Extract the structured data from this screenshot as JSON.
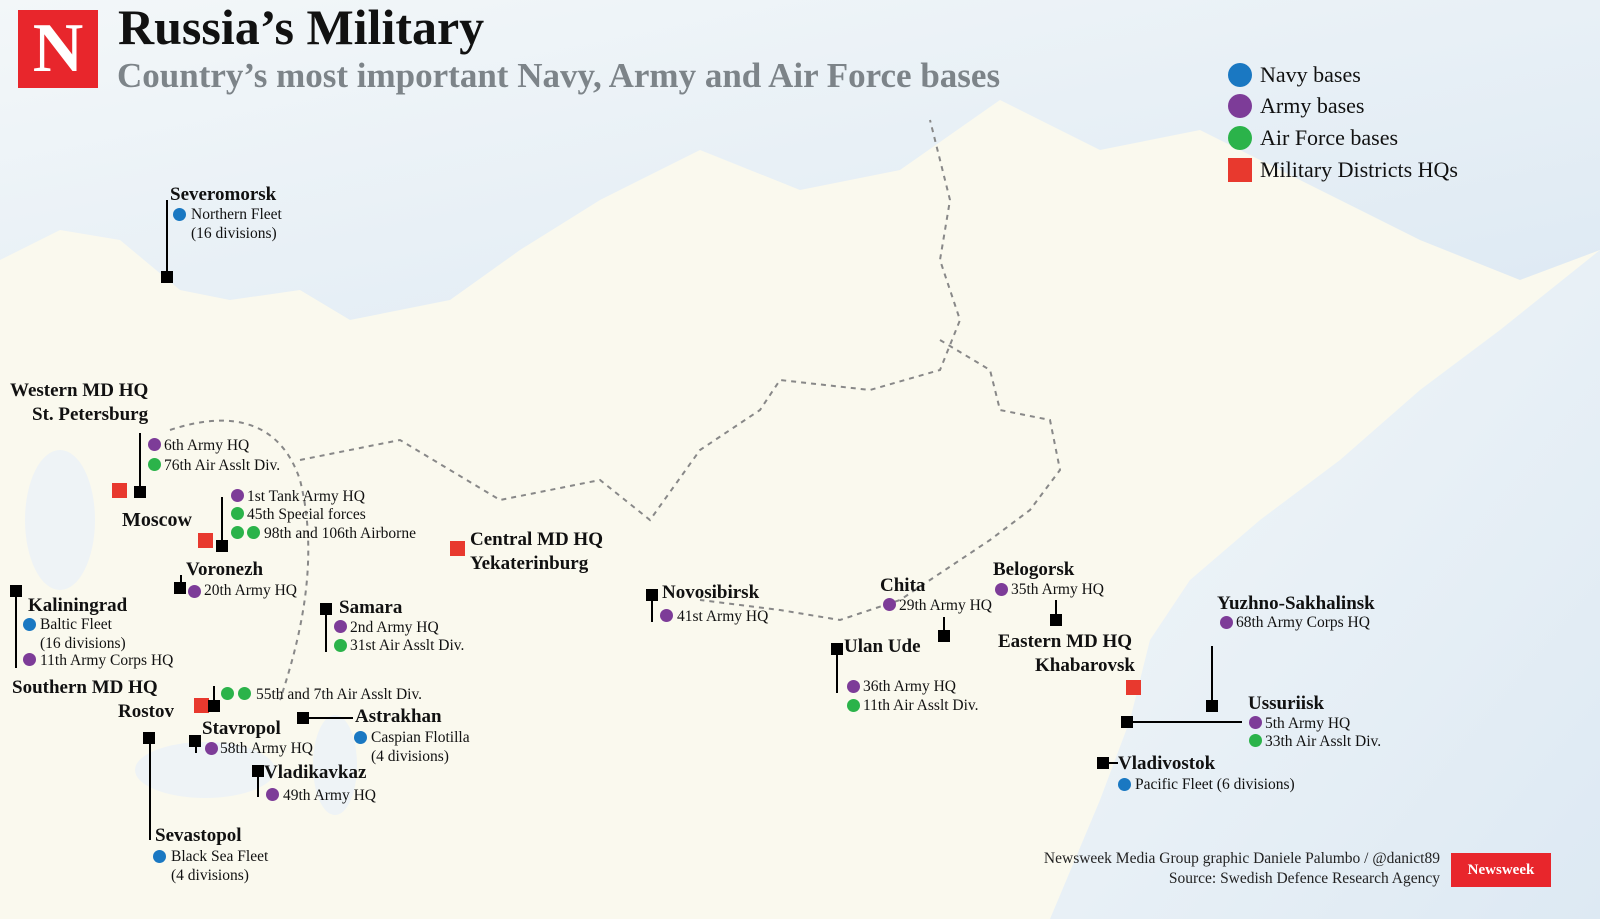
{
  "header": {
    "logo_letter": "N",
    "title": "Russia’s Military",
    "subtitle": "Country’s most important Navy, Army and Air Force bases"
  },
  "legend": [
    {
      "label": "Navy bases",
      "color": "#1a78c2"
    },
    {
      "label": "Army bases",
      "color": "#7d3c98"
    },
    {
      "label": "Air Force bases",
      "color": "#2bb34a"
    },
    {
      "label": "Military Districts HQs",
      "color": "#e8392e"
    }
  ],
  "bases": {
    "severomorsk": {
      "name": "Severomorsk",
      "items": [
        "Northern Fleet",
        "(16 divisions)"
      ]
    },
    "western": {
      "name": "Western MD HQ",
      "city": "St. Petersburg",
      "items": [
        "6th Army HQ",
        "76th Air Asslt Div."
      ]
    },
    "moscow": {
      "name": "Moscow",
      "items": [
        "1st Tank Army HQ",
        "45th Special forces",
        "98th and 106th Airborne"
      ]
    },
    "central": {
      "name": "Central MD HQ",
      "city": "Yekaterinburg"
    },
    "voronezh": {
      "name": "Voronezh",
      "items": [
        "20th Army HQ"
      ]
    },
    "kaliningrad": {
      "name": "Kaliningrad",
      "items": [
        "Baltic Fleet",
        "(16 divisions)",
        "11th Army Corps HQ"
      ]
    },
    "samara": {
      "name": "Samara",
      "items": [
        "2nd Army HQ",
        "31st Air Asslt Div."
      ]
    },
    "southern": {
      "name": "Southern MD HQ",
      "city": "Rostov",
      "items": [
        "55th and 7th Air Asslt Div."
      ]
    },
    "astrakhan": {
      "name": "Astrakhan",
      "items": [
        "Caspian Flotilla",
        "(4 divisions)"
      ]
    },
    "stavropol": {
      "name": "Stavropol",
      "items": [
        "58th Army HQ"
      ]
    },
    "vladikavkaz": {
      "name": "Vladikavkaz",
      "items": [
        "49th Army HQ"
      ]
    },
    "sevastopol": {
      "name": "Sevastopol",
      "items": [
        "Black Sea Fleet",
        "(4 divisions)"
      ]
    },
    "novosibirsk": {
      "name": "Novosibirsk",
      "items": [
        "41st Army HQ"
      ]
    },
    "chita": {
      "name": "Chita",
      "items": [
        "29th Army HQ"
      ]
    },
    "ulanude": {
      "name": "Ulan Ude",
      "items": [
        "36th Army HQ",
        "11th Air Asslt Div."
      ]
    },
    "belogorsk": {
      "name": "Belogorsk",
      "items": [
        "35th Army HQ"
      ]
    },
    "eastern": {
      "name": "Eastern MD HQ",
      "city": "Khabarovsk"
    },
    "yuzhno": {
      "name": "Yuzhno-Sakhalinsk",
      "items": [
        "68th Army Corps HQ"
      ]
    },
    "ussuriisk": {
      "name": "Ussuriisk",
      "items": [
        "5th Army HQ",
        "33th Air Asslt Div."
      ]
    },
    "vladivostok": {
      "name": "Vladivostok",
      "items": [
        "Pacific Fleet (6 divisions)"
      ]
    }
  },
  "credits": {
    "line1": "Newsweek Media Group graphic Daniele Palumbo / @danict89",
    "line2": "Source: Swedish Defence Research Agency",
    "badge": "Newsweek"
  }
}
